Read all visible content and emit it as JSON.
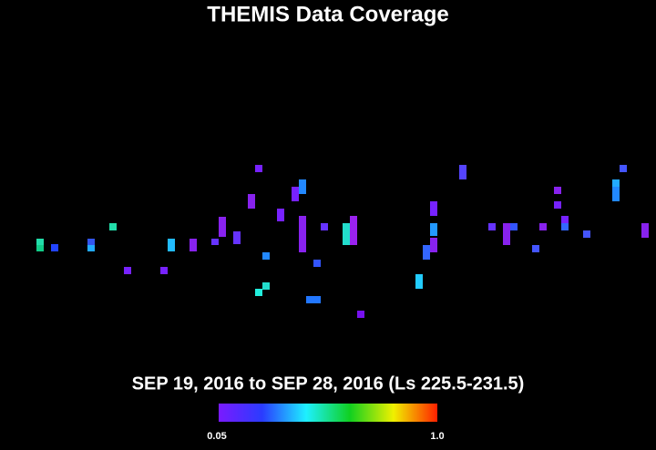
{
  "header": {
    "title": "THEMIS Data Coverage"
  },
  "footer": {
    "subtitle": "SEP 19, 2016 to SEP 28, 2016 (Ls 225.5-231.5)",
    "colorbar": {
      "min_label": "0.05",
      "max_label": "1.0"
    }
  }
}
